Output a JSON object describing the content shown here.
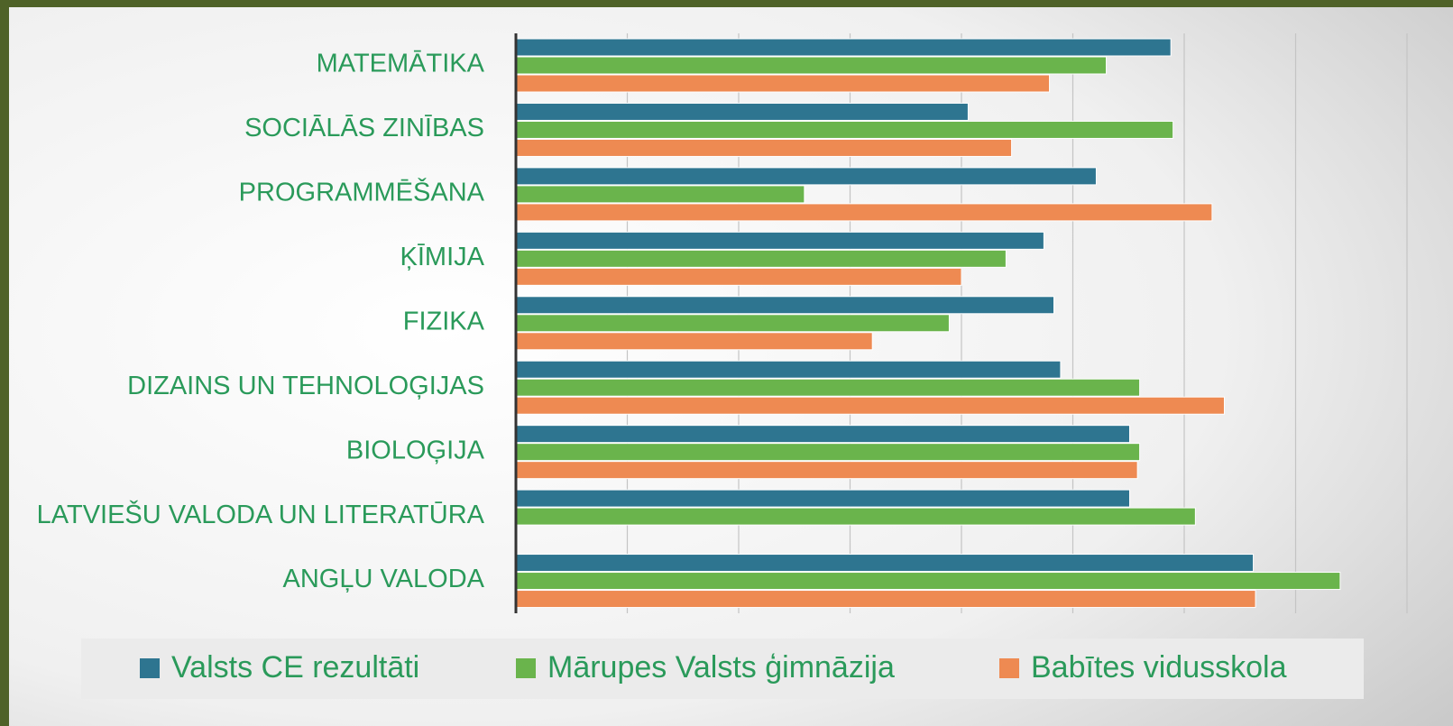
{
  "chart_data": {
    "type": "barh",
    "categories": [
      "MATEMĀTIKA",
      "SOCIĀLĀS ZINĪBAS",
      "PROGRAMMĒŠANA",
      "ĶĪMIJA",
      "FIZIKA",
      "DIZAINS UN TEHNOLOĢIJAS",
      "BIOLOĢIJA",
      "LATVIEŠU VALODA UN LITERATŪRA",
      "ANGĻU VALODA"
    ],
    "series": [
      {
        "name": "Valsts CE rezultāti",
        "color": "#2e7590",
        "values": [
          58.8,
          40.6,
          52.1,
          47.4,
          48.3,
          48.9,
          55.1,
          55.1,
          66.2
        ]
      },
      {
        "name": "Mārupes Valsts ģimnāzija",
        "color": "#6ab44c",
        "values": [
          53.0,
          59.0,
          25.9,
          44.0,
          38.9,
          56.0,
          56.0,
          61.0,
          74.0
        ]
      },
      {
        "name": "Babītes vidusskola",
        "color": "#ee8a52",
        "values": [
          47.9,
          44.5,
          62.5,
          40.0,
          32.0,
          63.6,
          55.8,
          null,
          66.4
        ]
      }
    ],
    "xlim": [
      0,
      80
    ],
    "xticks": [
      0,
      10,
      20,
      30,
      40,
      50,
      60,
      70,
      80
    ],
    "grid": true,
    "legend": "bottom"
  }
}
